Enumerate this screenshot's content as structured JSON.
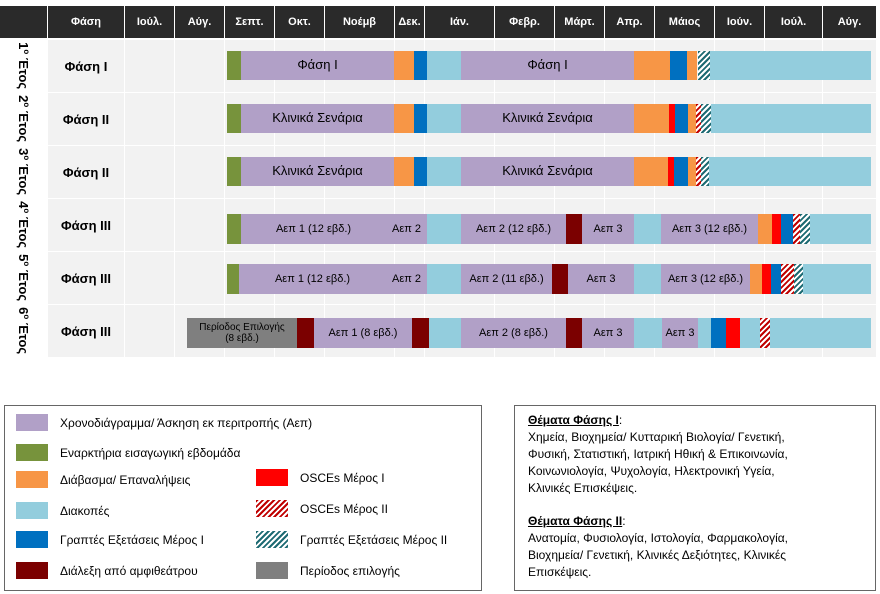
{
  "header": {
    "phase_col": "Φάση",
    "months": [
      "Ιούλ.",
      "Αύγ.",
      "Σεπτ.",
      "Οκτ.",
      "Νοέμβ",
      "Δεκ.",
      "Ιάν.",
      "Φεβρ.",
      "Μάρτ.",
      "Απρ.",
      "Μάιος",
      "Ιούν.",
      "Ιούλ.",
      "Αύγ."
    ]
  },
  "colors": {
    "purple": "#b1a0c7",
    "green": "#77933c",
    "orange": "#f79646",
    "lightblue": "#93cddd",
    "blue": "#0070c0",
    "darkred": "#7b0000",
    "red": "#ff0000",
    "gray": "#7f7f7f"
  },
  "rows": [
    {
      "num": "1",
      "suffix": "ο",
      "word": "Έτος",
      "phase": "Φάση Ι",
      "labels": {
        "a": "Φάση Ι",
        "b": "Φάση Ι"
      }
    },
    {
      "num": "2",
      "suffix": "ο",
      "word": "Έτος",
      "phase": "Φάση ΙΙ",
      "labels": {
        "a": "Κλινικά Σενάρια",
        "b": "Κλινικά Σενάρια"
      }
    },
    {
      "num": "3",
      "suffix": "ο",
      "word": "Έτος",
      "phase": "Φάση ΙΙ",
      "labels": {
        "a": "Κλινικά Σενάρια",
        "b": "Κλινικά Σενάρια"
      }
    },
    {
      "num": "4",
      "suffix": "ο",
      "word": "Έτος",
      "phase": "Φάση ΙΙΙ",
      "labels": {
        "a": "Αεπ 1 (12 εβδ.)",
        "b": "Αεπ 2",
        "c": "Αεπ 2 (12 εβδ.)",
        "d": "Αεπ 3",
        "e": "Αεπ 3 (12 εβδ.)"
      }
    },
    {
      "num": "5",
      "suffix": "ο",
      "word": "Έτος",
      "phase": "Φάση ΙΙΙ",
      "labels": {
        "a": "Αεπ 1 (12 εβδ.)",
        "b": "Αεπ 2",
        "c": "Αεπ 2 (11 εβδ.)",
        "d": "Αεπ 3",
        "e": "Αεπ 3 (12 εβδ.)"
      }
    },
    {
      "num": "6",
      "suffix": "ο",
      "word": "Έτος",
      "phase": "Φάση ΙΙΙ",
      "labels": {
        "a": "Περίοδος  Επιλογής\n(8 εβδ.)",
        "b": "Αεπ 1 (8 εβδ.)",
        "c": "Αεπ 2 (8 εβδ.)",
        "d": "Αεπ 3",
        "e": "Αεπ 3"
      }
    }
  ],
  "legend": {
    "left": [
      "Χρονοδιάγραμμα/ Άσκηση εκ περιτροπής (Αεπ)",
      "Εναρκτήρια εισαγωγική εβδομάδα",
      "Διάβασμα/ Επαναλήψεις",
      "Διακοπές",
      "Γραπτές Εξετάσεις Μέρος Ι",
      "Διάλεξη από αμφιθεάτρου"
    ],
    "right": [
      "OSCEs Μέρος Ι",
      "OSCEs Μέρος ΙΙ",
      "Γραπτές Εξετάσεις Μέρος ΙΙ",
      "Περίοδος επιλογής"
    ]
  },
  "topics": {
    "phase1_title": "Θέματα Φάσης Ι",
    "phase1_colon": ":",
    "phase1_lines": [
      "Χημεία, Βιοχημεία/ Κυτταρική Βιολογία/ Γενετική,",
      "Φυσική, Στατιστική, Ιατρική Ηθική & Επικοινωνία,",
      "Κοινωνιολογία, Ψυχολογία, Ηλεκτρονική Υγεία,",
      "Κλινικές Επισκέψεις."
    ],
    "phase2_title": "Θέματα Φάσης ΙΙ",
    "phase2_colon": ":",
    "phase2_lines": [
      "Ανατομία, Φυσιολογία, Ιστολογία, Φαρμακολογία,",
      "Βιοχημεία/ Γενετική, Κλινικές Δεξιότητες, Κλινικές",
      "Επισκέψεις."
    ]
  }
}
